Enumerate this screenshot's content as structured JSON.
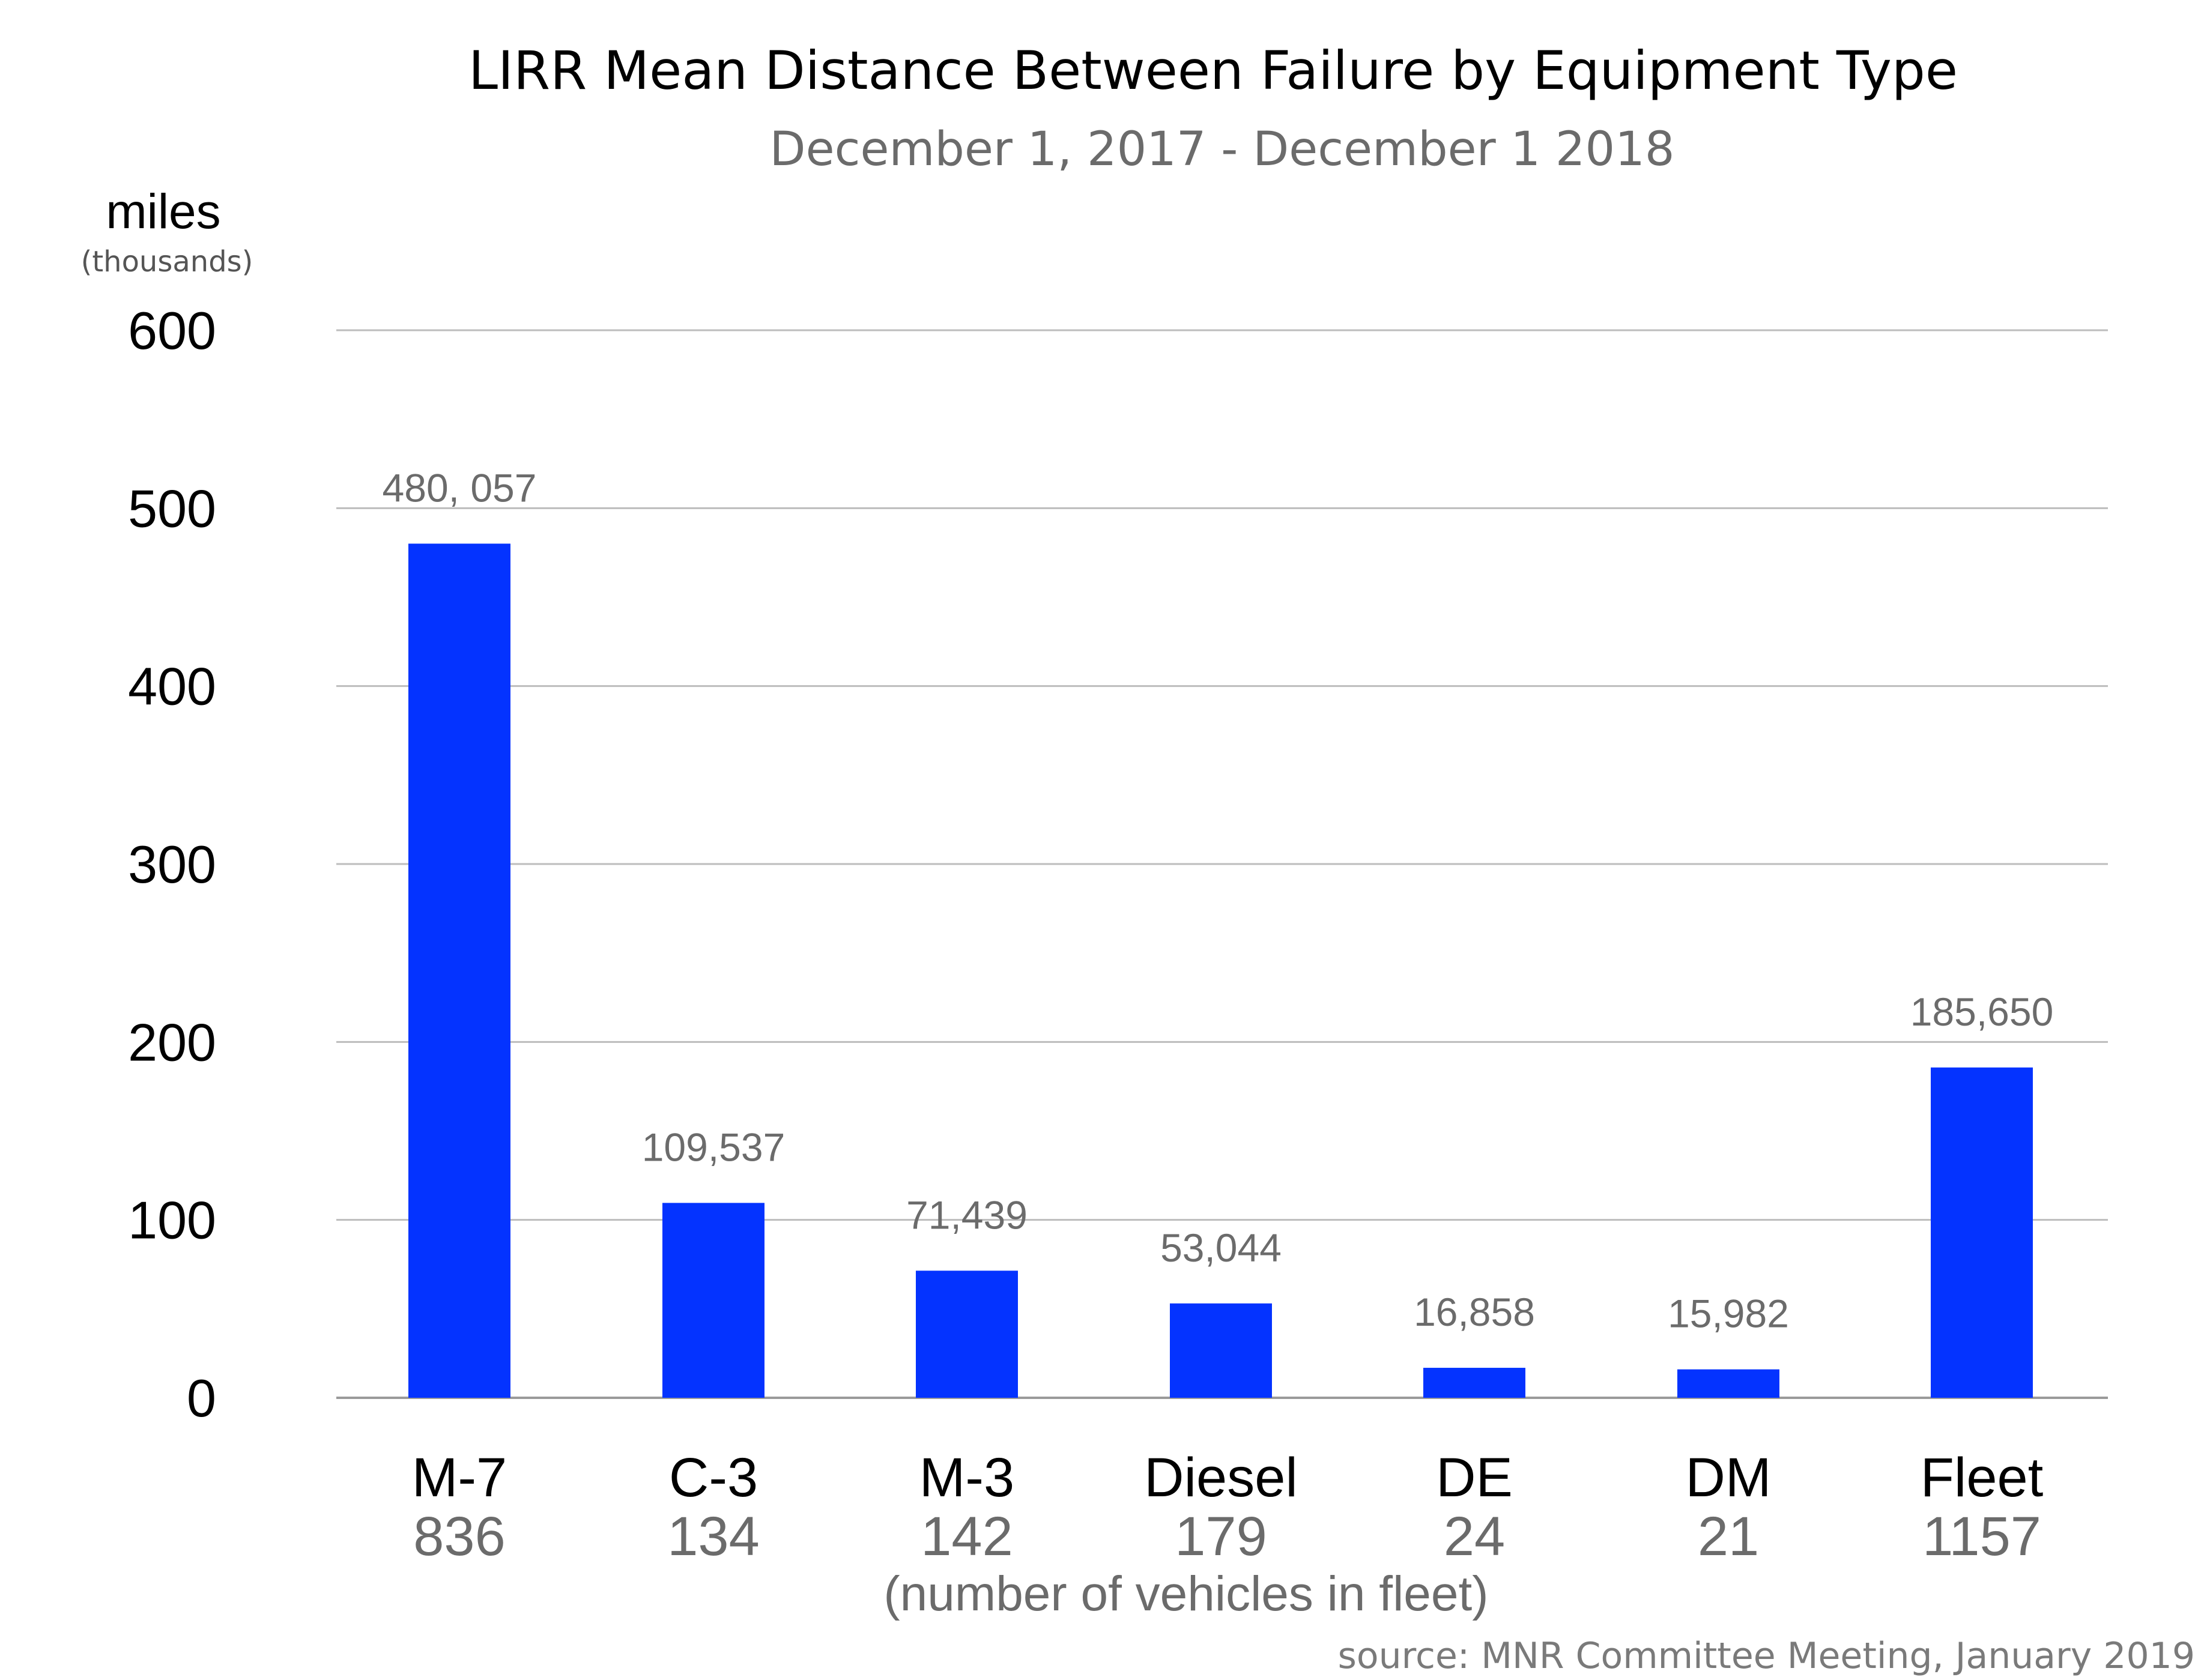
{
  "chart_data": {
    "type": "bar",
    "title": "LIRR Mean Distance Between Failure by Equipment Type",
    "subtitle": "December 1, 2017 - December 1 2018",
    "ylabel": "miles",
    "ylabel_sub": "(thousands)",
    "ylim": [
      0,
      600
    ],
    "yticks": [
      0,
      100,
      200,
      300,
      400,
      500,
      600
    ],
    "ytick_labels": [
      "0",
      "100",
      "200",
      "300",
      "400",
      "500",
      "600"
    ],
    "grid": true,
    "categories": [
      "M-7",
      "C-3",
      "M-3",
      "Diesel",
      "DE",
      "DM",
      "Fleet"
    ],
    "fleet_counts": [
      "836",
      "134",
      "142",
      "179",
      "24",
      "21",
      "1157"
    ],
    "values": [
      480.057,
      109.537,
      71.439,
      53.044,
      16.858,
      15.982,
      185.65
    ],
    "data_labels": [
      "480, 057",
      "109,537",
      "71,439",
      "53,044",
      "16,858",
      "15,982",
      "185,650"
    ],
    "xnote": "(number of vehicles in fleet)",
    "source": "source: MNR Committee Meeting, January 2019",
    "bar_color": "#0433ff"
  }
}
